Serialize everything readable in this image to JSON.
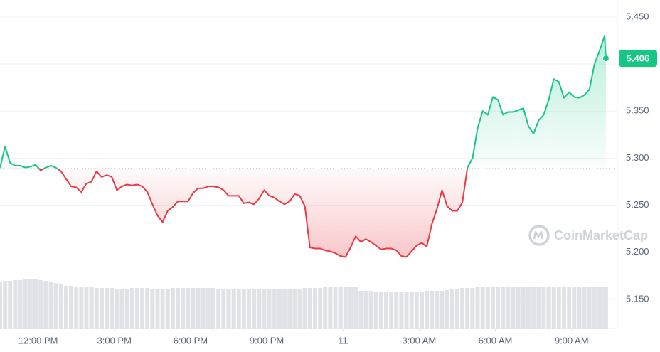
{
  "chart_data": {
    "type": "line",
    "x": [
      10.5,
      10.7,
      10.9,
      11.1,
      11.3,
      11.5,
      11.7,
      11.9,
      12.1,
      12.3,
      12.5,
      12.7,
      12.9,
      13.1,
      13.3,
      13.5,
      13.7,
      13.9,
      14.1,
      14.3,
      14.5,
      14.7,
      14.9,
      15.1,
      15.3,
      15.5,
      15.7,
      15.9,
      16.1,
      16.3,
      16.5,
      16.7,
      16.9,
      17.1,
      17.3,
      17.5,
      17.7,
      17.9,
      18.1,
      18.3,
      18.5,
      18.7,
      18.9,
      19.1,
      19.3,
      19.5,
      19.7,
      19.9,
      20.1,
      20.3,
      20.5,
      20.7,
      20.9,
      21.1,
      21.3,
      21.5,
      21.7,
      21.9,
      22.1,
      22.3,
      22.5,
      22.7,
      22.9,
      23.1,
      23.3,
      23.5,
      23.7,
      23.9,
      24.1,
      24.3,
      24.5,
      24.7,
      24.9,
      25.1,
      25.3,
      25.5,
      25.7,
      25.9,
      26.1,
      26.3,
      26.5,
      26.7,
      26.9,
      27.1,
      27.3,
      27.5,
      27.7,
      27.9,
      28.1,
      28.3,
      28.5,
      28.7,
      28.9,
      29.1,
      29.3,
      29.5,
      29.7,
      29.9,
      30.1,
      30.3,
      30.5,
      30.7,
      30.9,
      31.1,
      31.3,
      31.5,
      31.7,
      31.9,
      32.1,
      32.3,
      32.5,
      32.7,
      32.9,
      33.1,
      33.3,
      33.5,
      33.7,
      33.9,
      34.1,
      34.3,
      34.35
    ],
    "values": [
      5.29,
      5.312,
      5.295,
      5.292,
      5.292,
      5.29,
      5.291,
      5.293,
      5.287,
      5.29,
      5.292,
      5.29,
      5.286,
      5.278,
      5.27,
      5.269,
      5.264,
      5.273,
      5.275,
      5.286,
      5.28,
      5.282,
      5.28,
      5.266,
      5.27,
      5.272,
      5.271,
      5.272,
      5.27,
      5.264,
      5.251,
      5.239,
      5.232,
      5.244,
      5.248,
      5.254,
      5.254,
      5.254,
      5.263,
      5.268,
      5.268,
      5.27,
      5.27,
      5.269,
      5.266,
      5.26,
      5.26,
      5.26,
      5.252,
      5.253,
      5.251,
      5.257,
      5.266,
      5.26,
      5.258,
      5.254,
      5.251,
      5.254,
      5.262,
      5.26,
      5.249,
      5.205,
      5.204,
      5.204,
      5.202,
      5.201,
      5.199,
      5.196,
      5.195,
      5.205,
      5.217,
      5.211,
      5.214,
      5.211,
      5.207,
      5.203,
      5.204,
      5.204,
      5.202,
      5.196,
      5.195,
      5.201,
      5.207,
      5.21,
      5.206,
      5.23,
      5.246,
      5.266,
      5.249,
      5.244,
      5.244,
      5.253,
      5.29,
      5.3,
      5.332,
      5.35,
      5.346,
      5.365,
      5.362,
      5.346,
      5.349,
      5.349,
      5.351,
      5.353,
      5.334,
      5.326,
      5.34,
      5.346,
      5.362,
      5.384,
      5.381,
      5.364,
      5.37,
      5.365,
      5.364,
      5.367,
      5.373,
      5.4,
      5.414,
      5.43,
      5.406
    ],
    "volume": [
      66,
      67,
      67,
      68,
      68,
      69,
      69,
      69,
      68,
      67,
      66,
      64,
      62,
      60,
      60,
      59,
      59,
      58,
      58,
      57,
      57,
      57,
      57,
      56,
      56,
      56,
      57,
      57,
      57,
      57,
      56,
      56,
      56,
      56,
      57,
      57,
      57,
      57,
      57,
      57,
      57,
      57,
      57,
      56,
      56,
      56,
      56,
      56,
      56,
      56,
      56,
      56,
      56,
      56,
      56,
      56,
      55,
      55,
      56,
      56,
      57,
      57,
      57,
      57,
      58,
      58,
      58,
      58,
      59,
      59,
      59,
      53,
      53,
      53,
      52,
      52,
      52,
      52,
      52,
      52,
      52,
      52,
      52,
      52,
      53,
      53,
      53,
      53,
      54,
      55,
      56,
      57,
      57,
      57,
      58,
      58,
      58,
      58,
      58,
      58,
      58,
      58,
      58,
      58,
      58,
      58,
      58,
      58,
      58,
      58,
      58,
      58,
      58,
      58,
      58,
      58,
      58,
      59,
      59,
      59,
      59
    ],
    "baseline": 5.289,
    "current_price": 5.406,
    "up_color": "#16c784",
    "down_color": "#ea3943",
    "volume_color": "#dfe3e8",
    "xlim": [
      10.5,
      34.8
    ],
    "ylim": [
      5.119,
      5.468
    ],
    "xticks": [
      {
        "value": 12,
        "label": "12:00 PM"
      },
      {
        "value": 15,
        "label": "3:00 PM"
      },
      {
        "value": 18,
        "label": "6:00 PM"
      },
      {
        "value": 21,
        "label": "9:00 PM"
      },
      {
        "value": 24,
        "label": "11"
      },
      {
        "value": 27,
        "label": "3:00 AM"
      },
      {
        "value": 30,
        "label": "6:00 AM"
      },
      {
        "value": 33,
        "label": "9:00 AM"
      }
    ],
    "yticks": [
      {
        "value": 5.15,
        "label": "5.150"
      },
      {
        "value": 5.2,
        "label": "5.200"
      },
      {
        "value": 5.25,
        "label": "5.250"
      },
      {
        "value": 5.3,
        "label": "5.300"
      },
      {
        "value": 5.35,
        "label": "5.350"
      },
      {
        "value": 5.4,
        "label": "5.400"
      },
      {
        "value": 5.45,
        "label": "5.450"
      }
    ],
    "grid": true,
    "watermark": "CoinMarketCap"
  }
}
